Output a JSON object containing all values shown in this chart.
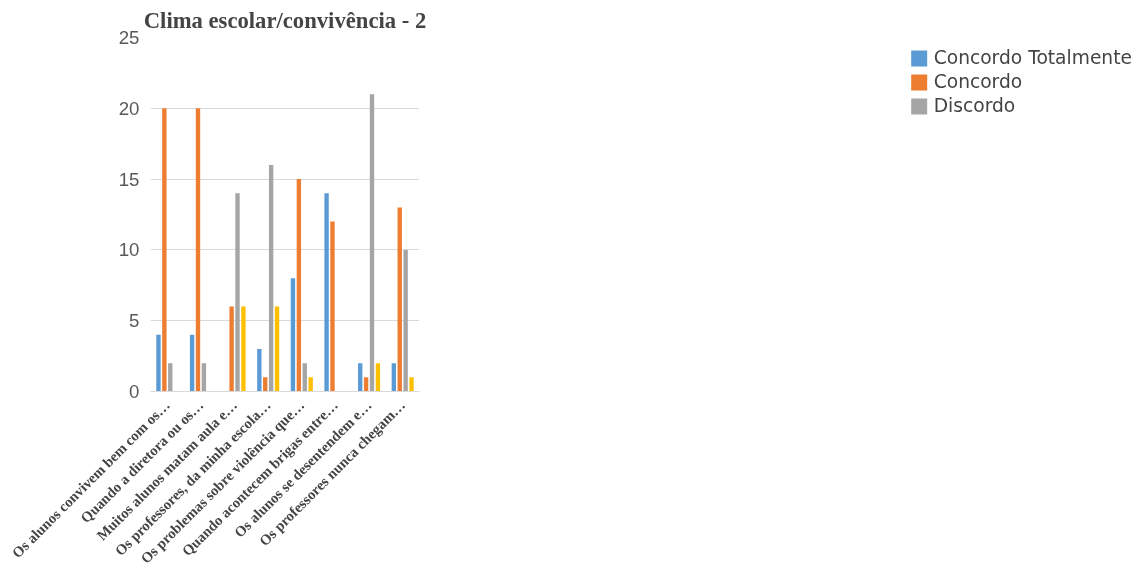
{
  "chart_data": {
    "type": "bar",
    "title": "Clima escolar/convivência - 2",
    "categories": [
      "Os alunos convivem bem com os…",
      "Quando a diretora ou os…",
      "Muitos alunos matam aula e…",
      "Os professores, da minha escola…",
      "Os problemas sobre violência que…",
      "Quando acontecem brigas entre…",
      "Os alunos se desentendem e…",
      "Os professores nunca chegam…"
    ],
    "series": [
      {
        "name": "Concordo Totalmente",
        "color": "#5b9bd5",
        "values": [
          4,
          4,
          0,
          3,
          8,
          14,
          2,
          2
        ]
      },
      {
        "name": "Concordo",
        "color": "#ed7d31",
        "values": [
          20,
          20,
          6,
          1,
          15,
          12,
          1,
          13
        ]
      },
      {
        "name": "Discordo",
        "color": "#a5a5a5",
        "values": [
          2,
          2,
          14,
          16,
          2,
          0,
          21,
          10
        ]
      },
      {
        "color": "#ffc000",
        "values": [
          0,
          0,
          6,
          6,
          1,
          0,
          2,
          1
        ]
      }
    ],
    "ylim": [
      0,
      25
    ],
    "yticks": [
      0,
      5,
      10,
      15,
      20,
      25
    ],
    "grid": "y",
    "legend": "right"
  }
}
